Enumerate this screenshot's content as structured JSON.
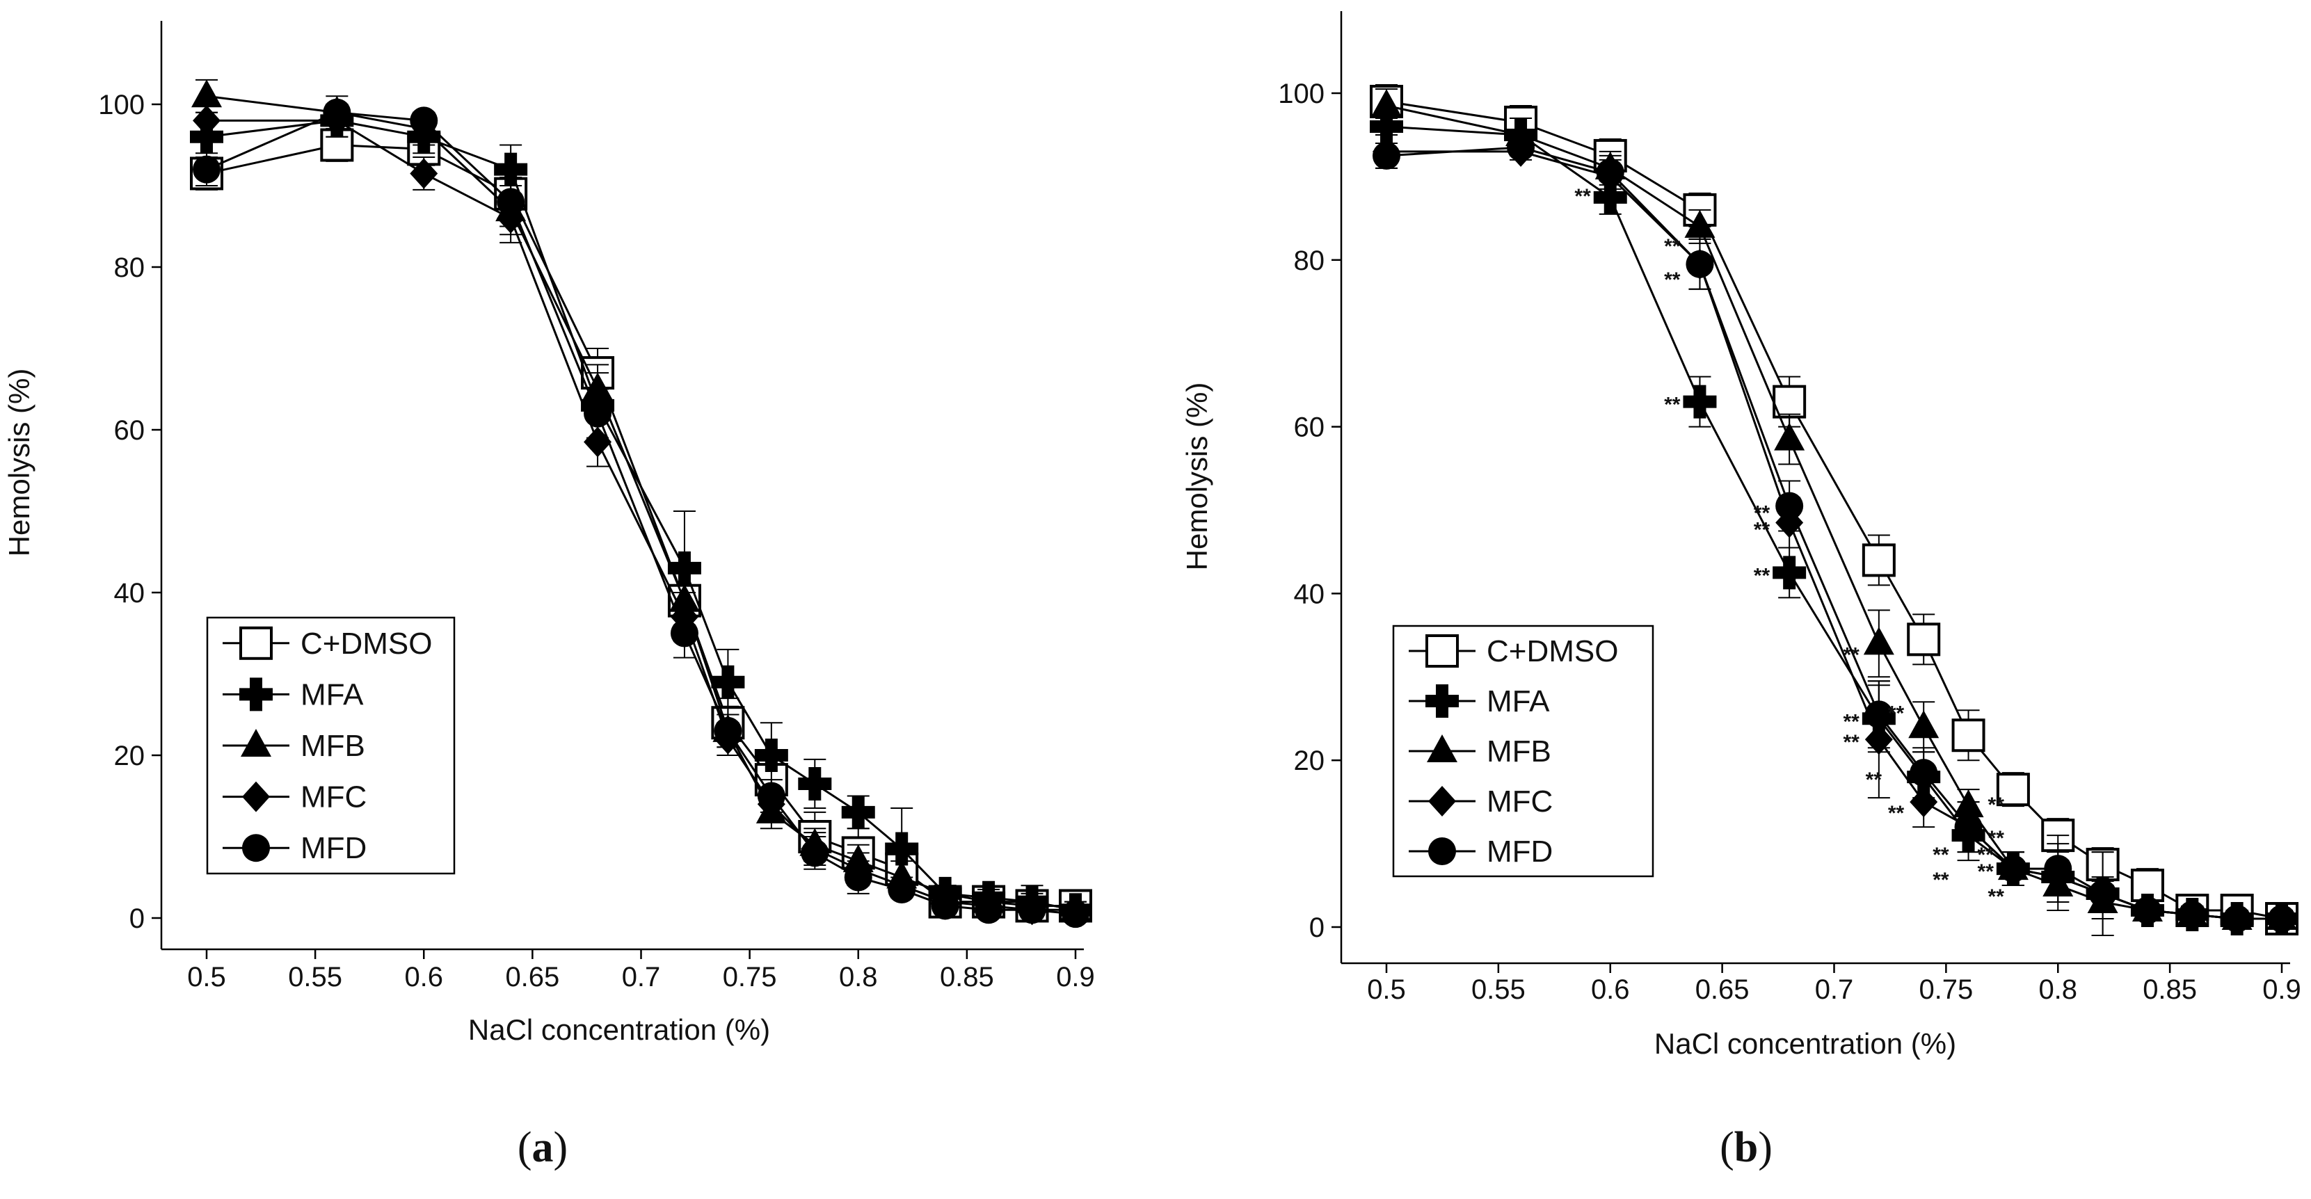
{
  "panels": [
    {
      "id": "a",
      "label_prefix": "(",
      "label": "a",
      "label_suffix": ")",
      "xlabel": "NaCl concentration (%)",
      "ylabel": "Hemolysis (%)",
      "xticks": [
        "0.5",
        "0.55",
        "0.6",
        "0.65",
        "0.7",
        "0.75",
        "0.8",
        "0.85",
        "0.9"
      ],
      "yticks": [
        "0",
        "20",
        "40",
        "60",
        "80",
        "100"
      ],
      "legend": [
        "C+DMSO",
        "MFA",
        "MFB",
        "MFC",
        "MFD"
      ]
    },
    {
      "id": "b",
      "label_prefix": "(",
      "label": "b",
      "label_suffix": ")",
      "xlabel": "NaCl concentration (%)",
      "ylabel": "Hemolysis (%)",
      "xticks": [
        "0.5",
        "0.55",
        "0.6",
        "0.65",
        "0.7",
        "0.75",
        "0.8",
        "0.85",
        "0.9"
      ],
      "yticks": [
        "0",
        "20",
        "40",
        "60",
        "80",
        "100"
      ],
      "legend": [
        "C+DMSO",
        "MFA",
        "MFB",
        "MFC",
        "MFD"
      ]
    }
  ],
  "chart_data": [
    {
      "panel": "a",
      "type": "line",
      "xlabel": "NaCl concentration (%)",
      "ylabel": "Hemolysis (%)",
      "xlim": [
        0.48,
        0.9
      ],
      "ylim": [
        -2,
        110
      ],
      "x": [
        0.5,
        0.56,
        0.6,
        0.64,
        0.68,
        0.72,
        0.74,
        0.76,
        0.78,
        0.8,
        0.82,
        0.84,
        0.86,
        0.88,
        0.9
      ],
      "series": [
        {
          "name": "C+DMSO",
          "marker": "open-square",
          "values": [
            91.5,
            95,
            94.5,
            89,
            67,
            39,
            24,
            17,
            10,
            8,
            6,
            2,
            2,
            1.5,
            1.5
          ],
          "errors": [
            2,
            2,
            2,
            2,
            3,
            4,
            3,
            3,
            3,
            3,
            3,
            1,
            1,
            1,
            1
          ]
        },
        {
          "name": "MFA",
          "marker": "cross",
          "values": [
            96,
            98,
            96,
            92,
            63,
            43,
            29,
            20,
            16.5,
            13,
            8.5,
            3,
            2.5,
            2,
            1
          ],
          "errors": [
            3,
            2,
            2,
            3,
            4,
            7,
            4,
            4,
            3,
            2,
            5,
            1,
            1,
            2,
            1
          ]
        },
        {
          "name": "MFB",
          "marker": "triangle",
          "values": [
            101,
            99,
            97,
            87,
            65,
            39,
            23,
            13,
            9,
            7,
            5,
            3,
            2,
            2,
            1
          ],
          "errors": [
            2,
            2,
            2,
            3,
            3,
            4,
            3,
            2,
            2,
            2,
            2,
            1,
            1,
            1,
            1
          ]
        },
        {
          "name": "MFC",
          "marker": "diamond",
          "values": [
            98,
            98,
            91.5,
            86,
            58.5,
            37,
            22,
            14,
            8.5,
            6,
            4,
            2,
            1.5,
            1,
            1
          ],
          "errors": [
            2,
            2,
            2,
            3,
            3,
            3,
            2,
            2,
            2,
            2,
            1,
            1,
            1,
            1,
            1
          ]
        },
        {
          "name": "MFD",
          "marker": "circle",
          "values": [
            92,
            99,
            98,
            88,
            62,
            35,
            23,
            15,
            8,
            5,
            3.5,
            1.5,
            1,
            1,
            0.5
          ],
          "errors": [
            2,
            1,
            1,
            3,
            3,
            3,
            2,
            2,
            2,
            2,
            1,
            1,
            1,
            1,
            1
          ]
        }
      ]
    },
    {
      "panel": "b",
      "type": "line",
      "xlabel": "NaCl concentration (%)",
      "ylabel": "Hemolysis (%)",
      "xlim": [
        0.48,
        0.9
      ],
      "ylim": [
        -2,
        110
      ],
      "x": [
        0.5,
        0.56,
        0.6,
        0.64,
        0.68,
        0.72,
        0.74,
        0.76,
        0.78,
        0.8,
        0.82,
        0.84,
        0.86,
        0.88,
        0.9
      ],
      "series": [
        {
          "name": "C+DMSO",
          "marker": "open-square",
          "values": [
            99,
            96.5,
            92.5,
            86,
            63,
            44,
            34.5,
            23,
            16.5,
            11,
            7.5,
            5,
            2,
            2,
            1
          ],
          "errors": [
            2,
            2,
            2,
            2,
            3,
            3,
            3,
            3,
            2,
            2,
            2,
            2,
            1,
            1,
            1
          ]
        },
        {
          "name": "MFA",
          "marker": "cross",
          "values": [
            96,
            95,
            87.5,
            63,
            42.5,
            25,
            18,
            11,
            7,
            6,
            4,
            2,
            1.5,
            1,
            1
          ],
          "errors": [
            2,
            2,
            2,
            3,
            3,
            4,
            3,
            3,
            2,
            2,
            2,
            1,
            1,
            1,
            1
          ]
        },
        {
          "name": "MFB",
          "marker": "triangle",
          "values": [
            98.5,
            95,
            91,
            84,
            58.5,
            34,
            24,
            14.5,
            7,
            5,
            3,
            2,
            1.5,
            1,
            1
          ],
          "errors": [
            2,
            2,
            2,
            2,
            3,
            4,
            3,
            2,
            2,
            2,
            2,
            1,
            1,
            1,
            1
          ]
        },
        {
          "name": "MFC",
          "marker": "diamond",
          "values": [
            93,
            93,
            90,
            79.5,
            48.5,
            22.5,
            15,
            12,
            7,
            6,
            4,
            2,
            1.5,
            1,
            1
          ],
          "errors": [
            2,
            1,
            2,
            3,
            3,
            7,
            3,
            3,
            2,
            4,
            5,
            1,
            1,
            1,
            1
          ]
        },
        {
          "name": "MFD",
          "marker": "circle",
          "values": [
            92.5,
            93.5,
            90.5,
            79.5,
            50.5,
            25.5,
            18.5,
            12,
            7,
            7,
            4,
            2,
            1.5,
            1,
            1
          ],
          "errors": [
            1.5,
            1,
            2,
            3,
            3,
            4,
            3,
            3,
            2,
            4,
            5,
            1,
            1,
            1,
            1
          ]
        }
      ],
      "annotations": [
        "**",
        "**",
        "**",
        "**",
        "**",
        "**",
        "**",
        "**",
        "**",
        "**",
        "**",
        "**",
        "**",
        "**",
        "**",
        "**",
        "**",
        "**",
        "**",
        "**"
      ]
    }
  ]
}
